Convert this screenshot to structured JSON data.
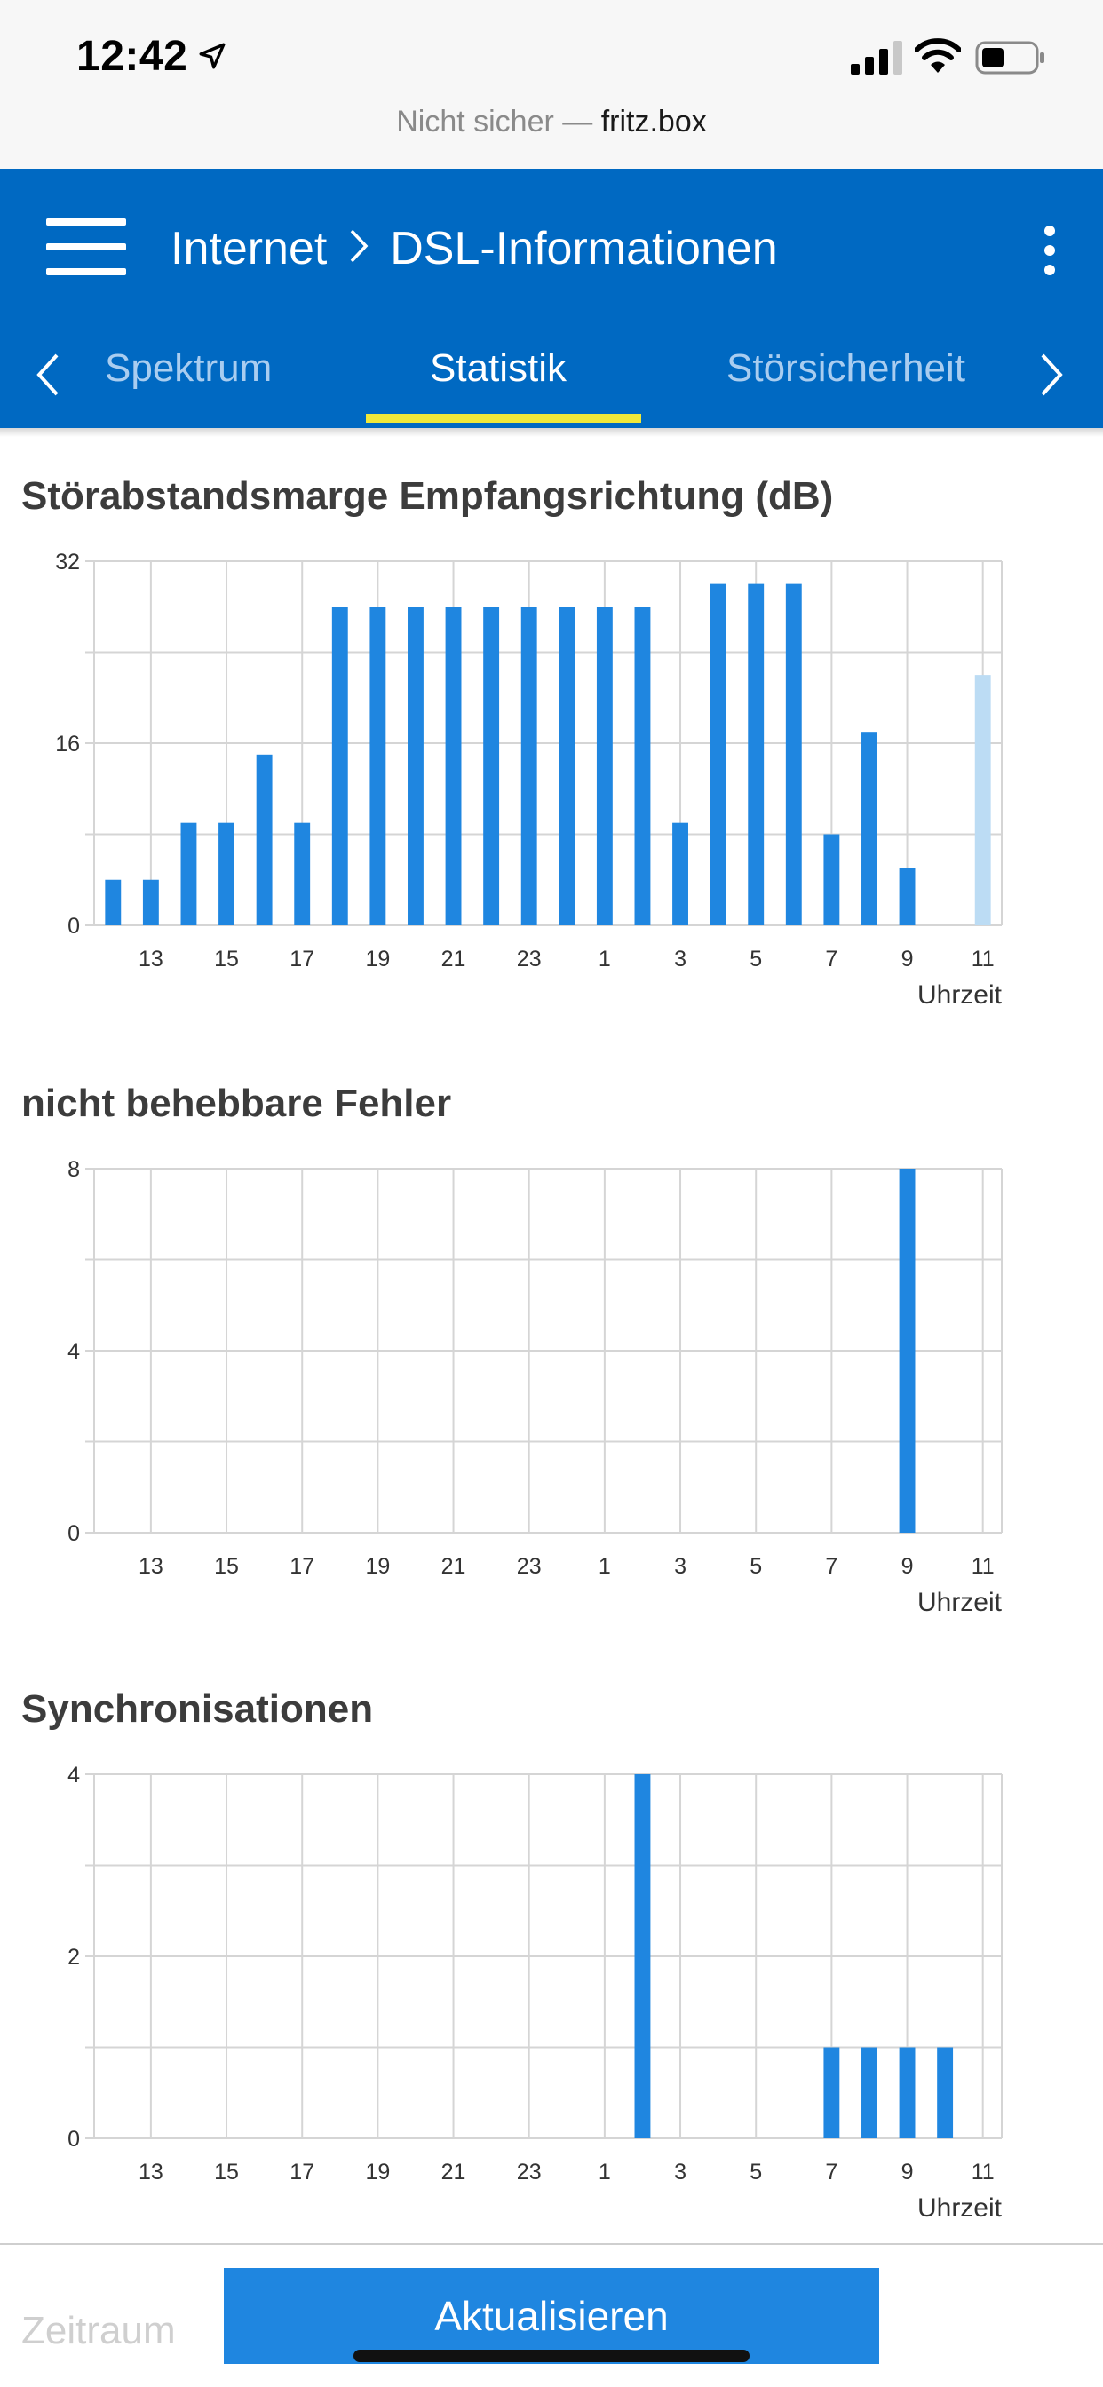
{
  "status_bar": {
    "time": "12:42"
  },
  "url_bar": {
    "prefix": "Nicht sicher — ",
    "domain": "fritz.box"
  },
  "header": {
    "breadcrumb_parent": "Internet",
    "breadcrumb_current": "DSL-Informationen",
    "tabs": [
      {
        "label": "Spektrum",
        "active": false
      },
      {
        "label": "Statistik",
        "active": true
      },
      {
        "label": "Störsicherheit",
        "active": false
      }
    ]
  },
  "colors": {
    "header": "#0069c2",
    "bar": "#1f86e0",
    "bar_current": "#bcdcf4",
    "tab_underline": "#f0e83a",
    "grid": "#d5d5d5"
  },
  "chart_data": [
    {
      "type": "bar",
      "title": "Störabstandsmarge Empfangsrichtung (dB)",
      "xlabel": "Uhrzeit",
      "x_ticks": [
        "13",
        "15",
        "17",
        "19",
        "21",
        "23",
        "1",
        "3",
        "5",
        "7",
        "9",
        "11"
      ],
      "ylim": [
        0,
        32
      ],
      "y_ticks": [
        0,
        16,
        32
      ],
      "hours": [
        12,
        13,
        14,
        15,
        16,
        17,
        18,
        19,
        20,
        21,
        22,
        23,
        0,
        1,
        2,
        3,
        4,
        5,
        6,
        7,
        8,
        9,
        10,
        11
      ],
      "values": [
        4,
        4,
        9,
        9,
        15,
        9,
        28,
        28,
        28,
        28,
        28,
        28,
        28,
        28,
        28,
        9,
        30,
        30,
        30,
        8,
        17,
        5,
        0,
        22
      ],
      "current_hour_index": 23,
      "grid": true
    },
    {
      "type": "bar",
      "title": "nicht behebbare Fehler",
      "xlabel": "Uhrzeit",
      "x_ticks": [
        "13",
        "15",
        "17",
        "19",
        "21",
        "23",
        "1",
        "3",
        "5",
        "7",
        "9",
        "11"
      ],
      "ylim": [
        0,
        8
      ],
      "y_ticks": [
        0,
        4,
        8
      ],
      "hours": [
        12,
        13,
        14,
        15,
        16,
        17,
        18,
        19,
        20,
        21,
        22,
        23,
        0,
        1,
        2,
        3,
        4,
        5,
        6,
        7,
        8,
        9,
        10,
        11
      ],
      "values": [
        0,
        0,
        0,
        0,
        0,
        0,
        0,
        0,
        0,
        0,
        0,
        0,
        0,
        0,
        0,
        0,
        0,
        0,
        0,
        0,
        0,
        8,
        0,
        0
      ],
      "grid": true
    },
    {
      "type": "bar",
      "title": "Synchronisationen",
      "xlabel": "Uhrzeit",
      "x_ticks": [
        "13",
        "15",
        "17",
        "19",
        "21",
        "23",
        "1",
        "3",
        "5",
        "7",
        "9",
        "11"
      ],
      "ylim": [
        0,
        4
      ],
      "y_ticks": [
        0,
        2,
        4
      ],
      "hours": [
        12,
        13,
        14,
        15,
        16,
        17,
        18,
        19,
        20,
        21,
        22,
        23,
        0,
        1,
        2,
        3,
        4,
        5,
        6,
        7,
        8,
        9,
        10,
        11
      ],
      "values": [
        0,
        0,
        0,
        0,
        0,
        0,
        0,
        0,
        0,
        0,
        0,
        0,
        0,
        0,
        4,
        0,
        0,
        0,
        0,
        1,
        1,
        1,
        1,
        0
      ],
      "grid": true
    }
  ],
  "bottom": {
    "period_label": "Zeitraum",
    "refresh_label": "Aktualisieren"
  }
}
